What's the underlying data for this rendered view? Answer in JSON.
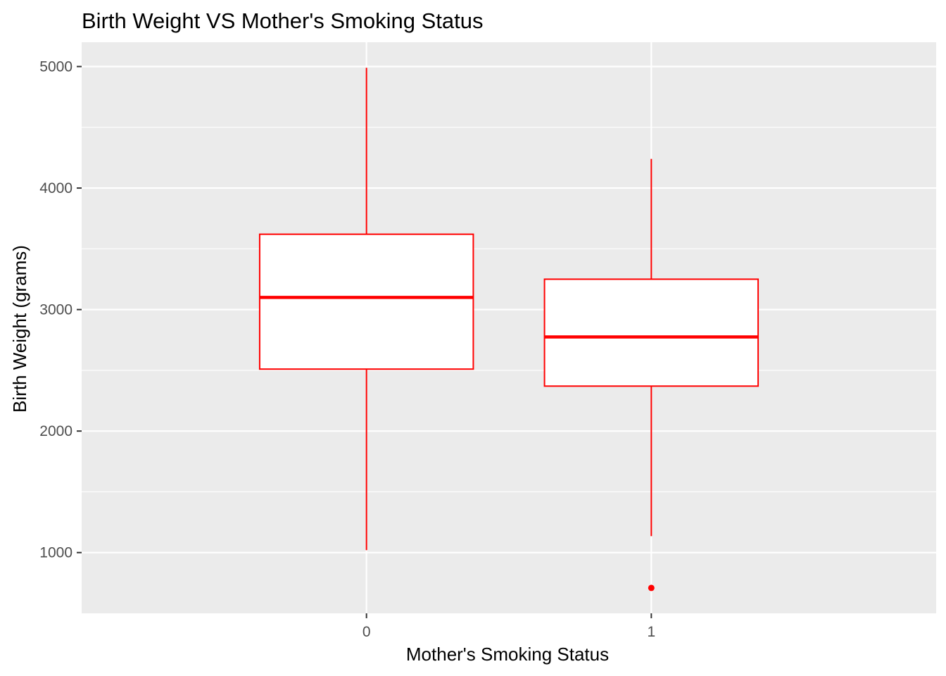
{
  "chart_data": {
    "type": "box",
    "title": "Birth Weight VS Mother's Smoking Status",
    "xlabel": "Mother's Smoking Status",
    "ylabel": "Birth Weight (grams)",
    "categories": [
      "0",
      "1"
    ],
    "ylim": [
      500,
      5200
    ],
    "yticks": [
      1000,
      2000,
      3000,
      4000,
      5000
    ],
    "grid": true,
    "legend": "none",
    "colors": {
      "box_stroke": "#ff0000",
      "box_fill": "#ffffff",
      "panel_bg": "#ebebeb",
      "grid": "#ffffff"
    },
    "boxes": [
      {
        "category": "0",
        "min": 1020,
        "q1": 2510,
        "median": 3100,
        "q3": 3620,
        "max": 4990,
        "outliers": []
      },
      {
        "category": "1",
        "min": 1135,
        "q1": 2370,
        "median": 2775,
        "q3": 3250,
        "max": 4240,
        "outliers": [
          709
        ]
      }
    ]
  }
}
